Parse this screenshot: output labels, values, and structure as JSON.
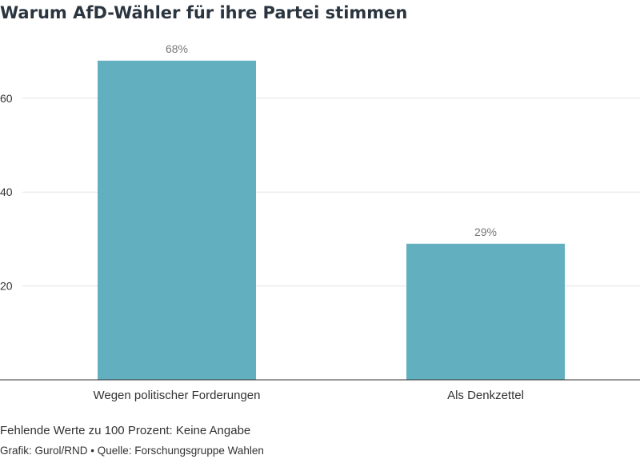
{
  "title": "Warum AfD-Wähler für ihre Partei stimmen",
  "chart_data": {
    "type": "bar",
    "categories": [
      "Wegen politischer Forderungen",
      "Als Denkzettel"
    ],
    "values": [
      68,
      29
    ],
    "value_labels": [
      "68%",
      "29%"
    ],
    "yticks": [
      20,
      40,
      60
    ],
    "ylim": [
      0,
      75
    ],
    "grid": true,
    "bar_color": "#62b0bf"
  },
  "note": "Fehlende Werte zu 100 Prozent: Keine Angabe",
  "footer": "Grafik: Gurol/RND • Quelle: Forschungsgruppe Wahlen"
}
